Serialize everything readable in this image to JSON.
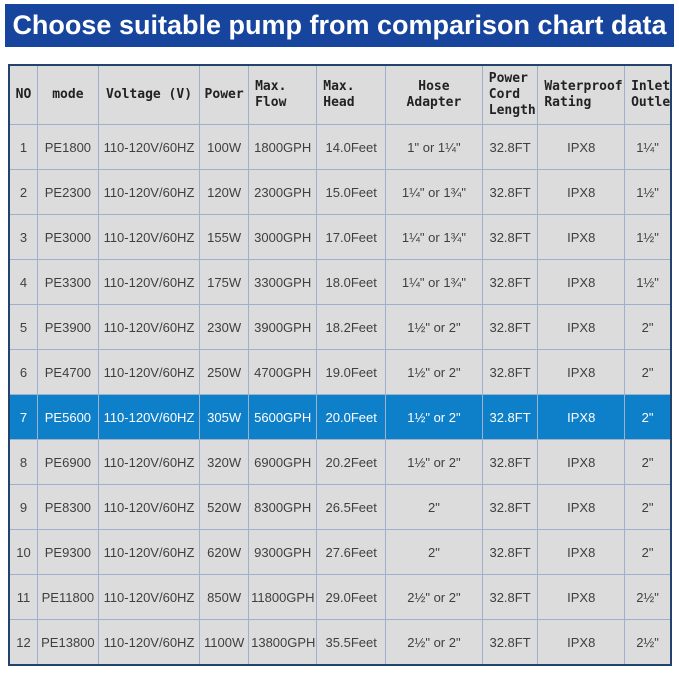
{
  "banner": {
    "title": "Choose suitable pump from comparison chart data"
  },
  "chart_data": {
    "type": "table",
    "title": "Choose suitable pump from comparison chart data",
    "columns": [
      "NO",
      "mode",
      "Voltage (V)",
      "Power",
      "Max.\nFlow",
      "Max.\nHead",
      "Hose Adapter",
      "Power\nCord\nLength",
      "Waterproof\nRating",
      "Inlet/\nOutlet"
    ],
    "highlighted_row_no": 7,
    "rows": [
      {
        "no": "1",
        "mode": "PE1800",
        "voltage": "110-120V/60HZ",
        "power": "100W",
        "max_flow": "1800GPH",
        "max_head": "14.0Feet",
        "hose_adapter": "1\" or 1¼\"",
        "power_cord_length": "32.8FT",
        "waterproof_rating": "IPX8",
        "inlet_outlet": "1¼\""
      },
      {
        "no": "2",
        "mode": "PE2300",
        "voltage": "110-120V/60HZ",
        "power": "120W",
        "max_flow": "2300GPH",
        "max_head": "15.0Feet",
        "hose_adapter": "1¼\" or 1¾\"",
        "power_cord_length": "32.8FT",
        "waterproof_rating": "IPX8",
        "inlet_outlet": "1½\""
      },
      {
        "no": "3",
        "mode": "PE3000",
        "voltage": "110-120V/60HZ",
        "power": "155W",
        "max_flow": "3000GPH",
        "max_head": "17.0Feet",
        "hose_adapter": "1¼\" or 1¾\"",
        "power_cord_length": "32.8FT",
        "waterproof_rating": "IPX8",
        "inlet_outlet": "1½\""
      },
      {
        "no": "4",
        "mode": "PE3300",
        "voltage": "110-120V/60HZ",
        "power": "175W",
        "max_flow": "3300GPH",
        "max_head": "18.0Feet",
        "hose_adapter": "1¼\" or 1¾\"",
        "power_cord_length": "32.8FT",
        "waterproof_rating": "IPX8",
        "inlet_outlet": "1½\""
      },
      {
        "no": "5",
        "mode": "PE3900",
        "voltage": "110-120V/60HZ",
        "power": "230W",
        "max_flow": "3900GPH",
        "max_head": "18.2Feet",
        "hose_adapter": "1½\" or 2\"",
        "power_cord_length": "32.8FT",
        "waterproof_rating": "IPX8",
        "inlet_outlet": "2\""
      },
      {
        "no": "6",
        "mode": "PE4700",
        "voltage": "110-120V/60HZ",
        "power": "250W",
        "max_flow": "4700GPH",
        "max_head": "19.0Feet",
        "hose_adapter": "1½\" or 2\"",
        "power_cord_length": "32.8FT",
        "waterproof_rating": "IPX8",
        "inlet_outlet": "2\""
      },
      {
        "no": "7",
        "mode": "PE5600",
        "voltage": "110-120V/60HZ",
        "power": "305W",
        "max_flow": "5600GPH",
        "max_head": "20.0Feet",
        "hose_adapter": "1½\" or 2\"",
        "power_cord_length": "32.8FT",
        "waterproof_rating": "IPX8",
        "inlet_outlet": "2\""
      },
      {
        "no": "8",
        "mode": "PE6900",
        "voltage": "110-120V/60HZ",
        "power": "320W",
        "max_flow": "6900GPH",
        "max_head": "20.2Feet",
        "hose_adapter": "1½\" or 2\"",
        "power_cord_length": "32.8FT",
        "waterproof_rating": "IPX8",
        "inlet_outlet": "2\""
      },
      {
        "no": "9",
        "mode": "PE8300",
        "voltage": "110-120V/60HZ",
        "power": "520W",
        "max_flow": "8300GPH",
        "max_head": "26.5Feet",
        "hose_adapter": "2\"",
        "power_cord_length": "32.8FT",
        "waterproof_rating": "IPX8",
        "inlet_outlet": "2\""
      },
      {
        "no": "10",
        "mode": "PE9300",
        "voltage": "110-120V/60HZ",
        "power": "620W",
        "max_flow": "9300GPH",
        "max_head": "27.6Feet",
        "hose_adapter": "2\"",
        "power_cord_length": "32.8FT",
        "waterproof_rating": "IPX8",
        "inlet_outlet": "2\""
      },
      {
        "no": "11",
        "mode": "PE11800",
        "voltage": "110-120V/60HZ",
        "power": "850W",
        "max_flow": "11800GPH",
        "max_head": "29.0Feet",
        "hose_adapter": "2½\" or 2\"",
        "power_cord_length": "32.8FT",
        "waterproof_rating": "IPX8",
        "inlet_outlet": "2½\""
      },
      {
        "no": "12",
        "mode": "PE13800",
        "voltage": "110-120V/60HZ",
        "power": "1100W",
        "max_flow": "13800GPH",
        "max_head": "35.5Feet",
        "hose_adapter": "2½\" or 2\"",
        "power_cord_length": "32.8FT",
        "waterproof_rating": "IPX8",
        "inlet_outlet": "2½\""
      }
    ]
  },
  "colors": {
    "banner_blue": "#17459e",
    "highlight_blue": "#0e80c9",
    "cell_gray": "#dcdcdc",
    "grid_line": "#9db0cd",
    "outer_border": "#24426e"
  }
}
